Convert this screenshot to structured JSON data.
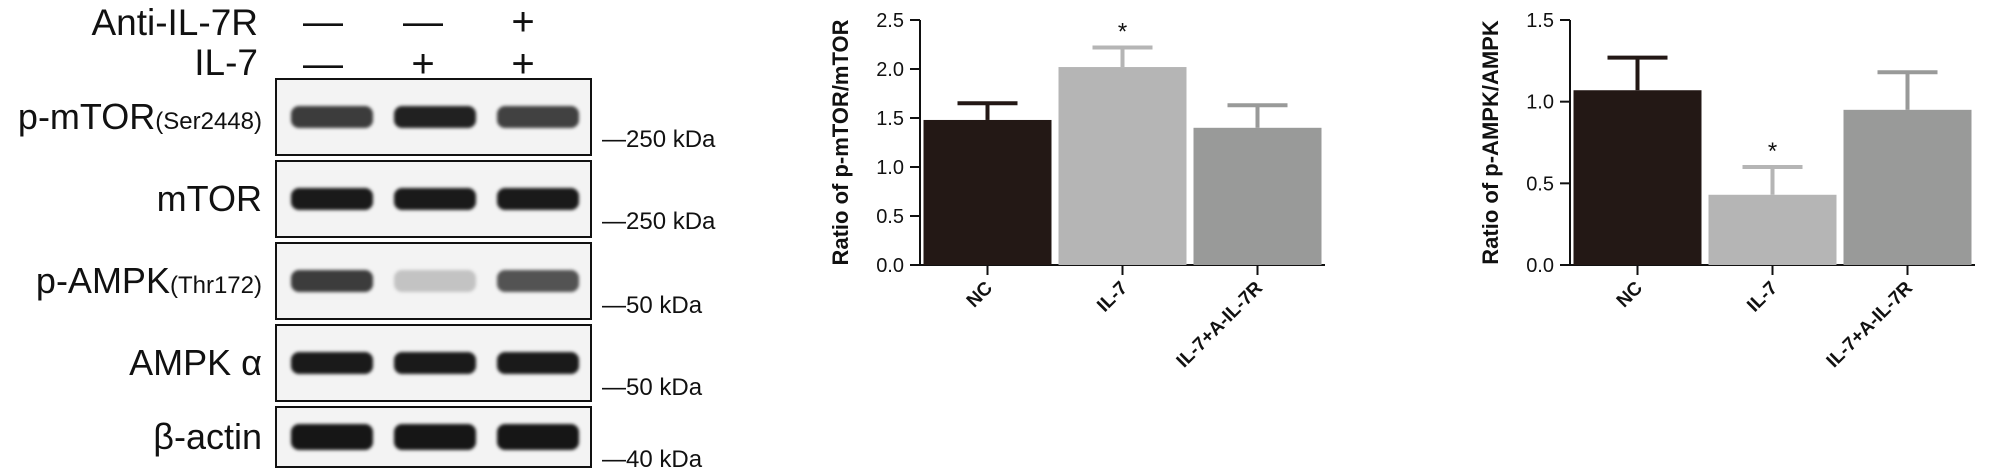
{
  "western_blot": {
    "header": [
      {
        "label": "Anti-IL-7R",
        "signs": [
          "—",
          "—",
          "+"
        ]
      },
      {
        "label": "IL-7",
        "signs": [
          "—",
          "+",
          "+"
        ]
      }
    ],
    "rows": [
      {
        "label": "p-mTOR",
        "sub": "(Ser2448)",
        "marker": "—250 kDa"
      },
      {
        "label": "mTOR",
        "sub": "",
        "marker": "—250 kDa"
      },
      {
        "label": "p-AMPK",
        "sub": "(Thr172)",
        "marker": "—50 kDa"
      },
      {
        "label": "AMPK α",
        "sub": "",
        "marker": "—50 kDa"
      },
      {
        "label": "β-actin",
        "sub": "",
        "marker": "—40 kDa"
      }
    ],
    "band_intensity": [
      [
        0.8,
        0.92,
        0.78
      ],
      [
        0.95,
        0.95,
        0.95
      ],
      [
        0.8,
        0.2,
        0.7
      ],
      [
        0.95,
        0.95,
        0.95
      ],
      [
        0.97,
        0.97,
        0.97
      ]
    ]
  },
  "chart_data": [
    {
      "type": "bar",
      "categories": [
        "NC",
        "IL-7",
        "IL-7+A-IL-7R"
      ],
      "values": [
        1.48,
        2.02,
        1.4
      ],
      "errors": [
        0.17,
        0.2,
        0.23
      ],
      "significance": [
        "",
        "*",
        ""
      ],
      "colors": [
        "#231815",
        "#b5b5b5",
        "#999a99"
      ],
      "ylabel": "Ratio of p-mTOR/mTOR",
      "ylim": [
        0,
        2.5
      ],
      "yticks": [
        "0.0",
        "0.5",
        "1.0",
        "1.5",
        "2.0",
        "2.5"
      ]
    },
    {
      "type": "bar",
      "categories": [
        "NC",
        "IL-7",
        "IL-7+A-IL-7R"
      ],
      "values": [
        1.07,
        0.43,
        0.95
      ],
      "errors": [
        0.2,
        0.17,
        0.23
      ],
      "significance": [
        "",
        "*",
        ""
      ],
      "colors": [
        "#231815",
        "#b5b5b5",
        "#999a99"
      ],
      "ylabel": "Ratio of p-AMPK/AMPK",
      "ylim": [
        0,
        1.5
      ],
      "yticks": [
        "0.0",
        "0.5",
        "1.0",
        "1.5"
      ]
    }
  ]
}
